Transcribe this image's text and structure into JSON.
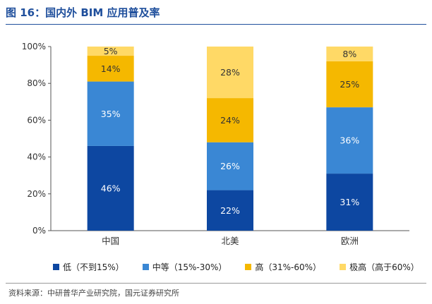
{
  "title": "图 16：国内外 BIM 应用普及率",
  "source": "资料来源：中研普华产业研究院，国元证券研究所",
  "colors": [
    "#0d47a1",
    "#3a87d4",
    "#f5b800",
    "#ffd966"
  ],
  "chart_data": {
    "type": "bar",
    "stacked": true,
    "categories": [
      "中国",
      "北美",
      "欧洲"
    ],
    "series": [
      {
        "name": "低（不到15%）",
        "values": [
          46,
          22,
          31
        ],
        "labels": [
          "46%",
          "22%",
          "31%"
        ]
      },
      {
        "name": "中等（15%-30%）",
        "values": [
          35,
          26,
          36
        ],
        "labels": [
          "35%",
          "26%",
          "36%"
        ]
      },
      {
        "name": "高（31%-60%）",
        "values": [
          14,
          24,
          25
        ],
        "labels": [
          "14%",
          "24%",
          "25%"
        ]
      },
      {
        "name": "极高（高于60%）",
        "values": [
          5,
          28,
          8
        ],
        "labels": [
          "5%",
          "28%",
          "8%"
        ]
      }
    ],
    "ylim": [
      0,
      100
    ],
    "yticks": [
      0,
      20,
      40,
      60,
      80,
      100
    ],
    "yticklabels": [
      "0%",
      "20%",
      "40%",
      "60%",
      "80%",
      "100%"
    ],
    "grid": false,
    "legend_position": "bottom"
  }
}
